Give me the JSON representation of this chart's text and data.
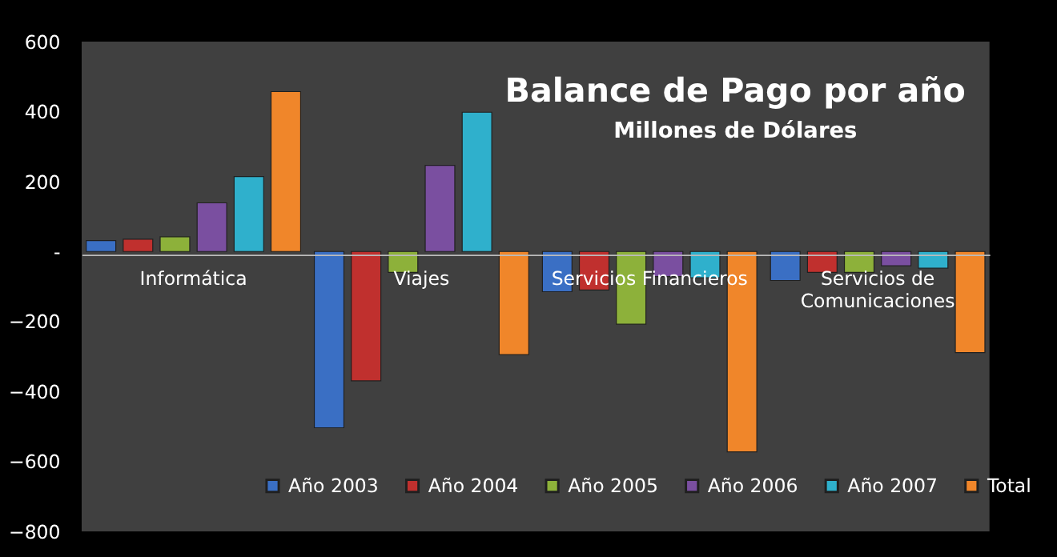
{
  "chart_data": {
    "type": "bar",
    "title": "Balance de Pago por año",
    "subtitle": "Millones de Dólares",
    "categories": [
      "Informática",
      "Viajes",
      "Servicios Financieros",
      "Servicios de Comunicaciones"
    ],
    "series": [
      {
        "name": "Año 2003",
        "color": "#3a6fc4",
        "values": [
          31,
          -504,
          -115,
          -83
        ]
      },
      {
        "name": "Año 2004",
        "color": "#c0302e",
        "values": [
          35,
          -370,
          -110,
          -60
        ]
      },
      {
        "name": "Año 2005",
        "color": "#8db13a",
        "values": [
          42,
          -60,
          -208,
          -60
        ]
      },
      {
        "name": "Año 2006",
        "color": "#7a4fa0",
        "values": [
          139,
          246,
          -72,
          -41
        ]
      },
      {
        "name": "Año 2007",
        "color": "#2fb0cc",
        "values": [
          214,
          398,
          -75,
          -48
        ]
      },
      {
        "name": "Total",
        "color": "#f0862a",
        "values": [
          457,
          -295,
          -573,
          -289
        ]
      }
    ],
    "ylim": [
      -800,
      600
    ],
    "yticks": [
      -800,
      -600,
      -400,
      -200,
      {
        "value": 0,
        "label": "-"
      },
      200,
      400,
      600
    ],
    "grid": false,
    "legend": "bottom"
  }
}
